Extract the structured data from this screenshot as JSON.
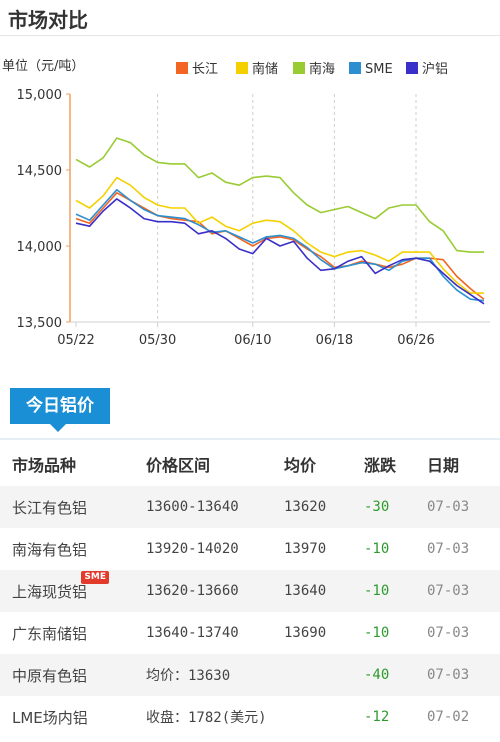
{
  "header": {
    "title": "市场对比"
  },
  "chart_data": {
    "type": "line",
    "unit_label": "单位（元/吨）",
    "ylim": [
      13500,
      15000
    ],
    "y_ticks": [
      "15,000",
      "14,500",
      "14,000",
      "13,500"
    ],
    "y_tick_values": [
      15000,
      14500,
      14000,
      13500
    ],
    "x_tick_labels": [
      "05/22",
      "05/30",
      "06/10",
      "06/18",
      "06/26"
    ],
    "x_tick_indices": [
      0,
      6,
      13,
      19,
      25
    ],
    "point_count": 31,
    "legend_position": "top-right",
    "series": [
      {
        "name": "长江",
        "color": "#f26522",
        "values": [
          14180,
          14150,
          14250,
          14350,
          14300,
          14250,
          14200,
          14180,
          14170,
          14160,
          14080,
          14100,
          14050,
          14000,
          14050,
          14060,
          14040,
          13980,
          13930,
          13860,
          13870,
          13900,
          13880,
          13860,
          13880,
          13920,
          13920,
          13910,
          13800,
          13720,
          13650
        ]
      },
      {
        "name": "南储",
        "color": "#f5d000",
        "values": [
          14300,
          14250,
          14330,
          14450,
          14400,
          14320,
          14270,
          14250,
          14250,
          14150,
          14190,
          14130,
          14100,
          14150,
          14170,
          14160,
          14100,
          14020,
          13960,
          13930,
          13960,
          13970,
          13940,
          13900,
          13960,
          13960,
          13960,
          13850,
          13760,
          13690,
          13690
        ]
      },
      {
        "name": "南海",
        "color": "#99cc33",
        "values": [
          14570,
          14520,
          14580,
          14710,
          14680,
          14600,
          14550,
          14540,
          14540,
          14450,
          14480,
          14420,
          14400,
          14450,
          14460,
          14450,
          14350,
          14270,
          14220,
          14240,
          14260,
          14220,
          14180,
          14250,
          14270,
          14270,
          14160,
          14100,
          13970,
          13960,
          13960
        ]
      },
      {
        "name": "SME",
        "color": "#2e8fd0",
        "values": [
          14210,
          14170,
          14270,
          14370,
          14300,
          14240,
          14200,
          14190,
          14180,
          14140,
          14090,
          14100,
          14060,
          14020,
          14060,
          14070,
          14050,
          13990,
          13910,
          13850,
          13870,
          13890,
          13880,
          13840,
          13900,
          13920,
          13920,
          13800,
          13710,
          13650,
          13640
        ]
      },
      {
        "name": "沪铝",
        "color": "#3a2fc8",
        "values": [
          14150,
          14130,
          14230,
          14310,
          14250,
          14180,
          14160,
          14160,
          14150,
          14080,
          14100,
          14050,
          13980,
          13950,
          14050,
          14000,
          14030,
          13920,
          13840,
          13850,
          13900,
          13930,
          13820,
          13870,
          13910,
          13920,
          13900,
          13820,
          13740,
          13680,
          13620
        ]
      }
    ]
  },
  "tab": {
    "label": "今日铝价"
  },
  "table": {
    "headers": [
      "市场品种",
      "价格区间",
      "均价",
      "涨跌",
      "日期"
    ],
    "rows": [
      {
        "market": "长江有色铝",
        "range": "13600-13640",
        "avg": "13620",
        "change": "-30",
        "date": "07-03"
      },
      {
        "market": "南海有色铝",
        "range": "13920-14020",
        "avg": "13970",
        "change": "-10",
        "date": "07-03"
      },
      {
        "market": "上海现货铝",
        "range": "13620-13660",
        "avg": "13640",
        "change": "-10",
        "date": "07-03",
        "badge": "SME"
      },
      {
        "market": "广东南储铝",
        "range": "13640-13740",
        "avg": "13690",
        "change": "-10",
        "date": "07-03"
      },
      {
        "market": "中原有色铝",
        "range": "均价：13630",
        "avg": "",
        "change": "-40",
        "date": "07-03"
      },
      {
        "market": "LME场内铝",
        "range": "收盘：1782(美元)",
        "avg": "",
        "change": "-12",
        "date": "07-02"
      }
    ]
  }
}
